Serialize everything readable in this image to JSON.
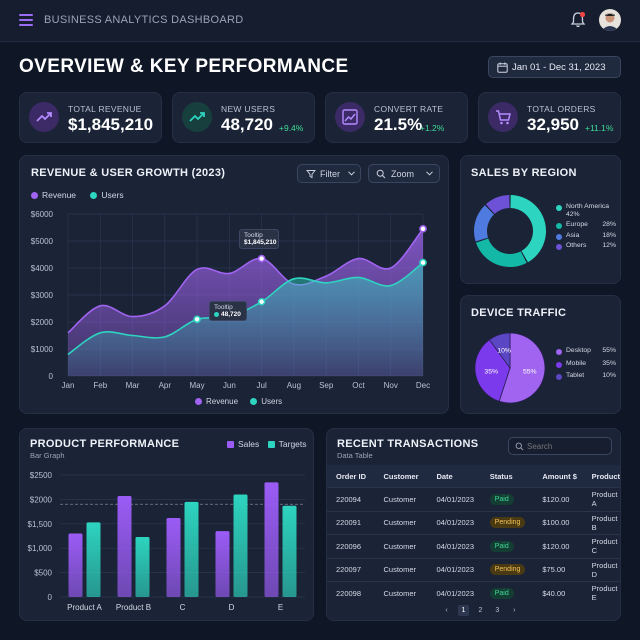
{
  "app": {
    "title": "BUSINESS ANALYTICS DASHBOARD"
  },
  "page": {
    "title": "OVERVIEW & KEY PERFORMANCE",
    "date_range": "Jan 01 - Dec 31, 2023"
  },
  "colors": {
    "purple": "#8b5cf6",
    "teal": "#2dd4bf",
    "green": "#3ddc97",
    "amber": "#f4c151",
    "card": "#1b2436"
  },
  "kpis": [
    {
      "label": "TOTAL REVENUE",
      "value": "$1,845,210",
      "delta": "",
      "icon": "trend-up-icon"
    },
    {
      "label": "NEW USERS",
      "value": "48,720",
      "delta": "+9.4%",
      "icon": "trend-up-icon"
    },
    {
      "label": "CONVERT RATE",
      "value": "21.5%",
      "delta": "+1.2%",
      "icon": "line-chart-icon"
    },
    {
      "label": "TOTAL ORDERS",
      "value": "32,950",
      "delta": "+11.1%",
      "icon": "cart-icon"
    }
  ],
  "revenue_card": {
    "title": "REVENUE & USER GROWTH (2023)",
    "filter_label": "Filter",
    "zoom_label": "Zoom",
    "tooltip1": {
      "title": "Tooltip",
      "value": "$1,845,210"
    },
    "tooltip2": {
      "title": "Tooltip",
      "value": "48,720"
    }
  },
  "region_card": {
    "title": "SALES BY REGION"
  },
  "device_card": {
    "title": "DEVICE TRAFFIC"
  },
  "product_card": {
    "title": "PRODUCT PERFORMANCE",
    "subtitle": "Bar Graph"
  },
  "transactions": {
    "title": "RECENT TRANSACTIONS",
    "subtitle": "Data Table",
    "search_placeholder": "Search",
    "columns": [
      "Order ID",
      "Customer",
      "Date",
      "Status",
      "Amount $",
      "Product"
    ],
    "rows": [
      [
        "220094",
        "Customer",
        "04/01/2023",
        "Paid",
        "$120.00",
        "Product A"
      ],
      [
        "220091",
        "Customer",
        "04/01/2023",
        "Pending",
        "$100.00",
        "Product B"
      ],
      [
        "220096",
        "Customer",
        "04/01/2023",
        "Paid",
        "$120.00",
        "Product C"
      ],
      [
        "220097",
        "Customer",
        "04/01/2023",
        "Pending",
        "$75.00",
        "Product D"
      ],
      [
        "220098",
        "Customer",
        "04/01/2023",
        "Paid",
        "$40.00",
        "Product E"
      ]
    ],
    "pagination": {
      "prev": "‹",
      "pages": [
        "1",
        "2",
        "3"
      ],
      "active": "1",
      "next": "›"
    }
  },
  "chart_data": [
    {
      "type": "area",
      "title": "REVENUE & USER GROWTH (2023)",
      "x": [
        "Jan",
        "Feb",
        "Mar",
        "Apr",
        "May",
        "Jun",
        "Jul",
        "Aug",
        "Sep",
        "Oct",
        "Nov",
        "Dec"
      ],
      "yticks": [
        "0",
        "$1000",
        "$2000",
        "$3000",
        "$4000",
        "$5000",
        "$6000"
      ],
      "ylim": [
        0,
        6000
      ],
      "series": [
        {
          "name": "Revenue",
          "color": "#a064f0",
          "values": [
            1600,
            2600,
            2200,
            2600,
            3950,
            3800,
            4350,
            3400,
            3700,
            4350,
            4000,
            5450
          ]
        },
        {
          "name": "Users",
          "color": "#2dd4bf",
          "values": [
            800,
            1600,
            1500,
            1450,
            2100,
            2200,
            2750,
            3600,
            3450,
            3650,
            3350,
            4200
          ]
        }
      ],
      "grid": true,
      "legend": "top-left and bottom"
    },
    {
      "type": "pie",
      "title": "SALES BY REGION",
      "donut": true,
      "slices": [
        {
          "name": "North America",
          "value": 42,
          "label": "42%",
          "color": "#2dd4bf"
        },
        {
          "name": "Europe",
          "value": 28,
          "label": "28%",
          "color": "#14b8a6"
        },
        {
          "name": "Asia",
          "value": 18,
          "label": "18%",
          "color": "#4f7ae0"
        },
        {
          "name": "Others",
          "value": 12,
          "label": "12%",
          "color": "#6d52d8"
        }
      ],
      "legend": "right"
    },
    {
      "type": "pie",
      "title": "DEVICE TRAFFIC",
      "slices": [
        {
          "name": "Desktop",
          "value": 55,
          "label": "55%",
          "color": "#a064f0"
        },
        {
          "name": "Mobile",
          "value": 35,
          "label": "35%",
          "color": "#7c3aed"
        },
        {
          "name": "Tablet",
          "value": 10,
          "label": "10%",
          "color": "#5b46c4"
        }
      ],
      "legend": "right"
    },
    {
      "type": "bar",
      "title": "PRODUCT PERFORMANCE",
      "categories": [
        "Product A",
        "Product B",
        "C",
        "D",
        "E"
      ],
      "yticks": [
        "0",
        "$500",
        "$1,000",
        "$1,500",
        "$2000",
        "$2500"
      ],
      "ylim": [
        0,
        2500
      ],
      "series": [
        {
          "name": "Sales",
          "color": "#9b5cf6",
          "values": [
            1300,
            2070,
            1620,
            1350,
            2350
          ]
        },
        {
          "name": "Targets",
          "color": "#2dd4bf",
          "values": [
            1530,
            1230,
            1950,
            2100,
            1870
          ]
        }
      ],
      "reference_line": 1900,
      "legend": "top-right"
    }
  ]
}
